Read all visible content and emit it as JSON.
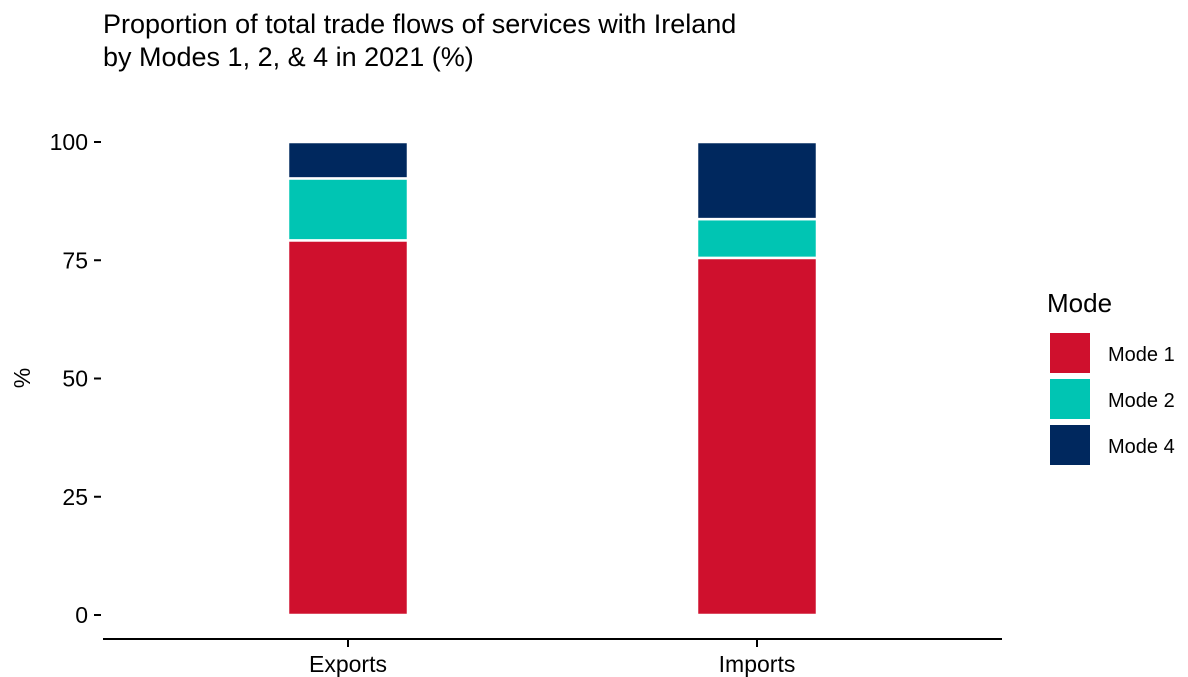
{
  "chart_data": {
    "type": "bar",
    "stacked": true,
    "title": "Proportion of total trade flows of services with Ireland",
    "subtitle": "by Modes 1, 2, & 4 in 2021 (%)",
    "xlabel": "",
    "ylabel": "%",
    "ylim": [
      0,
      100
    ],
    "yticks": [
      "0",
      "25",
      "50",
      "75",
      "100"
    ],
    "categories": [
      "Exports",
      "Imports"
    ],
    "series": [
      {
        "name": "Mode 1",
        "color": "#cf102d",
        "values": [
          79.2,
          75.5
        ]
      },
      {
        "name": "Mode 2",
        "color": "#00c5b3",
        "values": [
          13.1,
          8.2
        ]
      },
      {
        "name": "Mode 4",
        "color": "#00285e",
        "values": [
          7.7,
          16.3
        ]
      }
    ],
    "legend": {
      "title": "Mode",
      "position": "right"
    },
    "grid": false
  }
}
